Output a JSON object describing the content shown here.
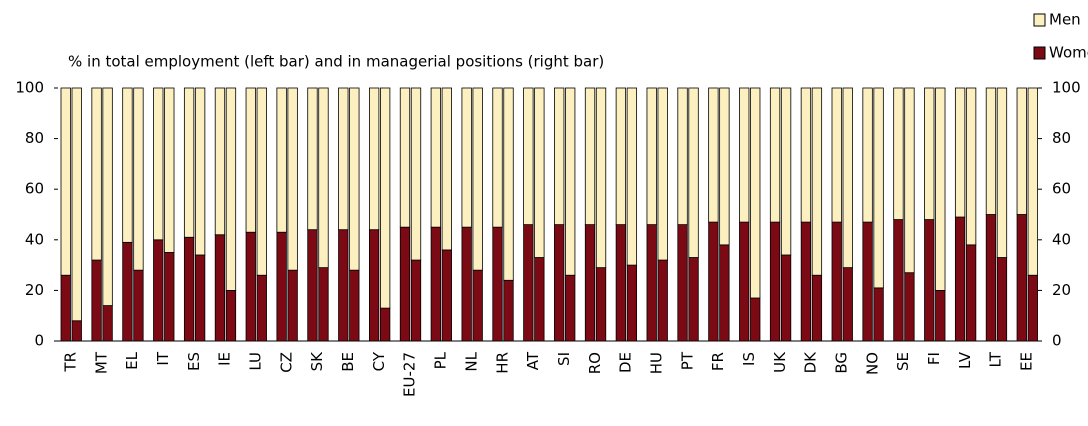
{
  "chart_data": {
    "type": "stacked-bar-pair",
    "title": "% in total employment (left bar) and in managerial positions (right bar)",
    "categories": [
      "TR",
      "MT",
      "EL",
      "IT",
      "ES",
      "IE",
      "LU",
      "CZ",
      "SK",
      "BE",
      "CY",
      "EU-27",
      "PL",
      "NL",
      "HR",
      "AT",
      "SI",
      "RO",
      "DE",
      "HU",
      "PT",
      "FR",
      "IS",
      "UK",
      "DK",
      "BG",
      "NO",
      "SE",
      "FI",
      "LV",
      "LT",
      "EE"
    ],
    "series": [
      {
        "name": "Men",
        "color": "#fdf0c0",
        "values": [
          74,
          68,
          61,
          60,
          59,
          58,
          57,
          57,
          56,
          56,
          56,
          55,
          55,
          55,
          55,
          54,
          54,
          54,
          54,
          54,
          54,
          53,
          53,
          53,
          53,
          53,
          53,
          52,
          52,
          51,
          50,
          50
        ],
        "values_managerial": [
          92,
          86,
          72,
          65,
          66,
          80,
          74,
          72,
          71,
          72,
          87,
          68,
          64,
          72,
          76,
          67,
          74,
          71,
          70,
          68,
          67,
          62,
          83,
          66,
          74,
          71,
          79,
          73,
          80,
          62,
          67,
          74
        ]
      },
      {
        "name": "Women",
        "color": "#7b0a14",
        "values": [
          26,
          32,
          39,
          40,
          41,
          42,
          43,
          43,
          44,
          44,
          44,
          45,
          45,
          45,
          45,
          46,
          46,
          46,
          46,
          46,
          46,
          47,
          47,
          47,
          47,
          47,
          47,
          48,
          48,
          49,
          50,
          50
        ],
        "values_managerial": [
          8,
          14,
          28,
          35,
          34,
          20,
          26,
          28,
          29,
          28,
          13,
          32,
          36,
          28,
          24,
          33,
          26,
          29,
          30,
          32,
          33,
          38,
          17,
          34,
          26,
          29,
          21,
          27,
          20,
          38,
          33,
          26
        ]
      }
    ],
    "ylim": [
      0,
      100
    ],
    "yticks": [
      0,
      20,
      40,
      60,
      80,
      100
    ],
    "y2lim": [
      0,
      100
    ],
    "y2ticks": [
      0,
      20,
      40,
      60,
      80,
      100
    ],
    "legend": "top-right"
  }
}
